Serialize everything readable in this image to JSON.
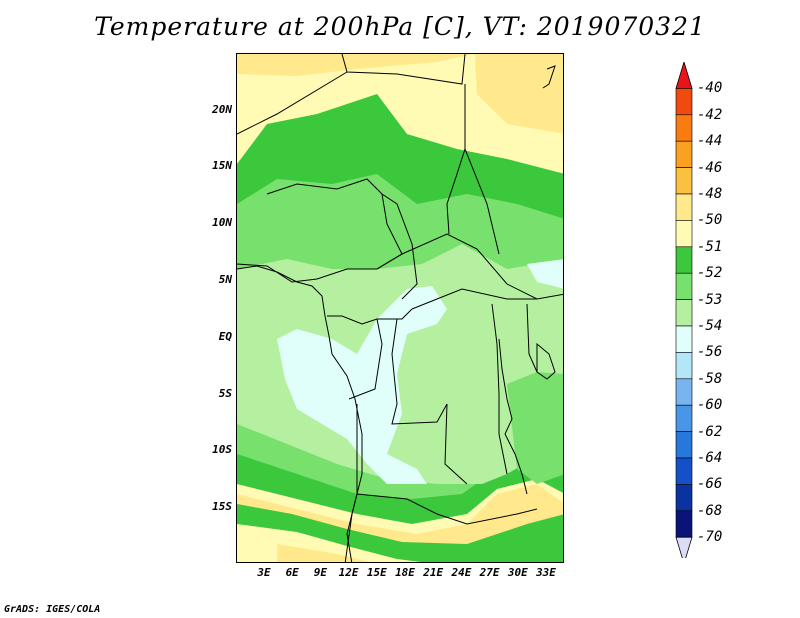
{
  "title": "Temperature at 200hPa [C], VT: 2019070321",
  "credit": "GrADS: IGES/COLA",
  "map": {
    "lat_labels": [
      "20N",
      "15N",
      "10N",
      "5N",
      "EQ",
      "5S",
      "10S",
      "15S"
    ],
    "lon_labels": [
      "3E",
      "6E",
      "9E",
      "12E",
      "15E",
      "18E",
      "21E",
      "24E",
      "27E",
      "30E",
      "33E"
    ],
    "region": "Central Africa"
  },
  "colorbar": {
    "labels": [
      "-40",
      "-42",
      "-44",
      "-46",
      "-48",
      "-50",
      "-51",
      "-52",
      "-53",
      "-54",
      "-56",
      "-58",
      "-60",
      "-62",
      "-64",
      "-66",
      "-68",
      "-70"
    ],
    "colors": [
      "#e8141a",
      "#f04a10",
      "#f87c10",
      "#fba020",
      "#fcc040",
      "#ffe98c",
      "#fffab4",
      "#3cc83c",
      "#78e06c",
      "#b4f0a0",
      "#e0fffa",
      "#b4e6fa",
      "#78b4f0",
      "#4a96e6",
      "#2878dc",
      "#1450c8",
      "#0a32a0",
      "#0a1478",
      "#dcdcf8"
    ]
  }
}
